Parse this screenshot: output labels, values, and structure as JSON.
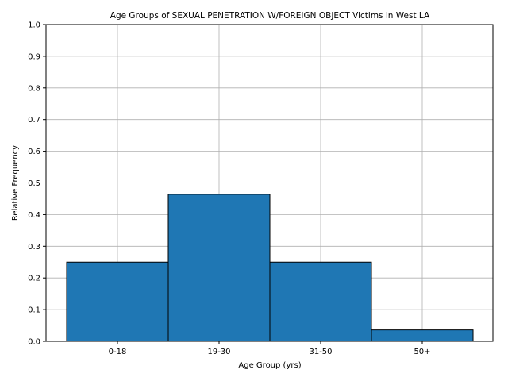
{
  "chart_data": {
    "type": "bar",
    "title": "Age Groups of SEXUAL PENETRATION W/FOREIGN OBJECT Victims in West LA",
    "xlabel": "Age Group (yrs)",
    "ylabel": "Relative Frequency",
    "categories": [
      "0-18",
      "19-30",
      "31-50",
      "50+"
    ],
    "values": [
      0.25,
      0.464,
      0.25,
      0.036
    ],
    "ylim": [
      0,
      1.0
    ],
    "yticks": [
      "0.0",
      "0.1",
      "0.2",
      "0.3",
      "0.4",
      "0.5",
      "0.6",
      "0.7",
      "0.8",
      "0.9",
      "1.0"
    ],
    "grid": true,
    "legend": "none",
    "bar_color": "#1f77b4",
    "edge_color": "#000000"
  }
}
